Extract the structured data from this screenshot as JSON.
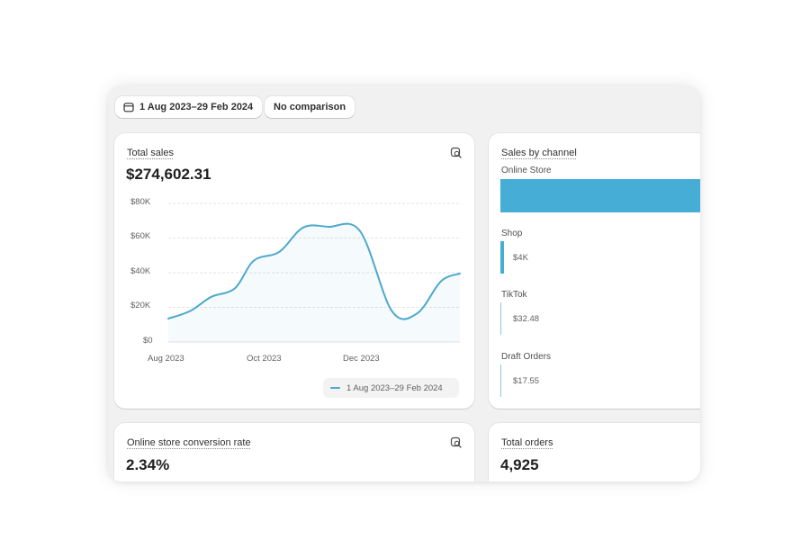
{
  "filters": {
    "date_range": "1 Aug 2023–29 Feb 2024",
    "comparison": "No comparison"
  },
  "total_sales": {
    "title": "Total sales",
    "value": "$274,602.31",
    "legend": "1 Aug 2023–29 Feb 2024",
    "chart_data": {
      "type": "line",
      "y_ticks": [
        "$80K",
        "$60K",
        "$40K",
        "$20K",
        "$0"
      ],
      "x_ticks": [
        "Aug 2023",
        "Oct 2023",
        "Dec 2023"
      ],
      "ylim": [
        0,
        80000
      ],
      "series": [
        {
          "values": [
            {
              "x": "2023-08-01",
              "y": 13500
            },
            {
              "x": "2023-08-15",
              "y": 18000
            },
            {
              "x": "2023-08-28",
              "y": 26000
            },
            {
              "x": "2023-09-12",
              "y": 31000
            },
            {
              "x": "2023-09-24",
              "y": 47000
            },
            {
              "x": "2023-10-10",
              "y": 52000
            },
            {
              "x": "2023-10-25",
              "y": 66000
            },
            {
              "x": "2023-11-10",
              "y": 66500
            },
            {
              "x": "2023-11-30",
              "y": 64000
            },
            {
              "x": "2023-12-20",
              "y": 18000
            },
            {
              "x": "2024-01-05",
              "y": 16500
            },
            {
              "x": "2024-01-20",
              "y": 35000
            },
            {
              "x": "2024-02-01",
              "y": 39500
            }
          ]
        }
      ],
      "line_color": "#4da8cc",
      "grid": true
    }
  },
  "sales_by_channel": {
    "title": "Sales by channel",
    "bar_color": "#45add6",
    "channels": [
      {
        "label": "Online Store",
        "value": "",
        "share": 1.0
      },
      {
        "label": "Shop",
        "value": "$4K",
        "share": 0.015
      },
      {
        "label": "TikTok",
        "value": "$32.48",
        "share": 0.0001
      },
      {
        "label": "Draft Orders",
        "value": "$17.55",
        "share": 0.0001
      }
    ]
  },
  "conversion_rate": {
    "title": "Online store conversion rate",
    "value": "2.34%"
  },
  "total_orders": {
    "title": "Total orders",
    "value": "4,925"
  }
}
